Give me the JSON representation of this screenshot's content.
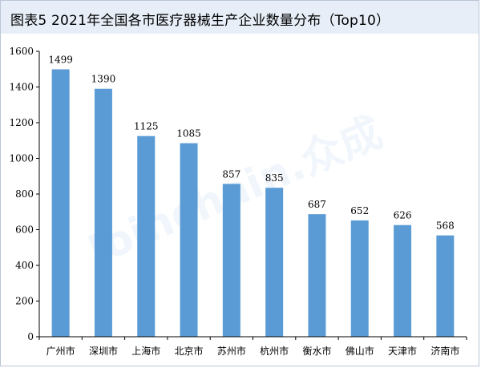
{
  "title": "图表5  2021年全国各市医疗器械生产企业数量分布（Top10）",
  "watermark": "Joinchain.众成",
  "colors": {
    "bar": "#5b9bd5",
    "header_bg": "#e7eef7",
    "axis": "#000000"
  },
  "chart_data": {
    "type": "bar",
    "title": "图表5  2021年全国各市医疗器械生产企业数量分布（Top10）",
    "categories": [
      "广州市",
      "深圳市",
      "上海市",
      "北京市",
      "苏州市",
      "杭州市",
      "衡水市",
      "佛山市",
      "天津市",
      "济南市"
    ],
    "values": [
      1499,
      1390,
      1125,
      1085,
      857,
      835,
      687,
      652,
      626,
      568
    ],
    "yticks": [
      0,
      200,
      400,
      600,
      800,
      1000,
      1200,
      1400,
      1600
    ],
    "ylim": [
      0,
      1600
    ],
    "xlabel": "",
    "ylabel": "",
    "grid": false,
    "legend": "none"
  }
}
